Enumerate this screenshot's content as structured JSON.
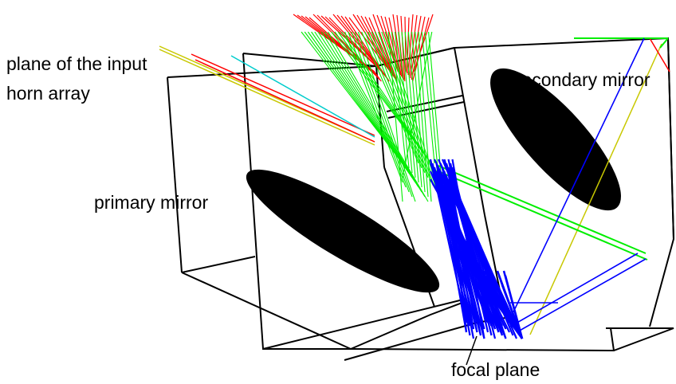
{
  "labels": {
    "input_line1": "plane of the input",
    "input_line2": "horn array",
    "primary": "primary mirror",
    "secondary": "secondary mirror",
    "focal": "focal plane"
  },
  "colors": {
    "frame": "#000000",
    "mirror": "#000000",
    "ray_red": "#ff0000",
    "ray_green": "#00ee00",
    "ray_blue": "#0000ff",
    "ray_yellow": "#c8c800",
    "ray_cyan": "#00cccc"
  }
}
